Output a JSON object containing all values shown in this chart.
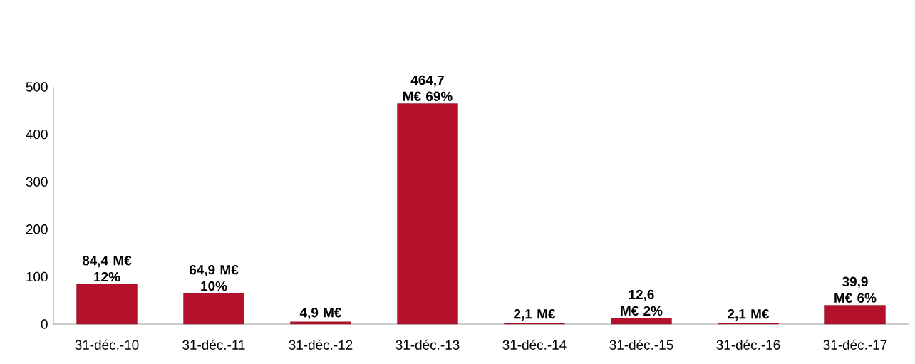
{
  "chart_data": {
    "type": "bar",
    "categories": [
      "31-déc.-10",
      "31-déc.-11",
      "31-déc.-12",
      "31-déc.-13",
      "31-déc.-14",
      "31-déc.-15",
      "31-déc.-16",
      "31-déc.-17"
    ],
    "values": [
      84.4,
      64.9,
      4.9,
      464.7,
      2.1,
      12.6,
      2.1,
      39.9
    ],
    "value_labels": [
      "84,4 M€ 12%",
      "64,9 M€ 10%",
      "4,9 M€",
      "464,7 M€ 69%",
      "2,1 M€",
      "12,6 M€ 2%",
      "2,1 M€",
      "39,9 M€ 6%"
    ],
    "color": "#b3112c",
    "ylim": [
      0,
      500
    ],
    "yticks": [
      0,
      100,
      200,
      300,
      400,
      500
    ],
    "grid": false
  }
}
